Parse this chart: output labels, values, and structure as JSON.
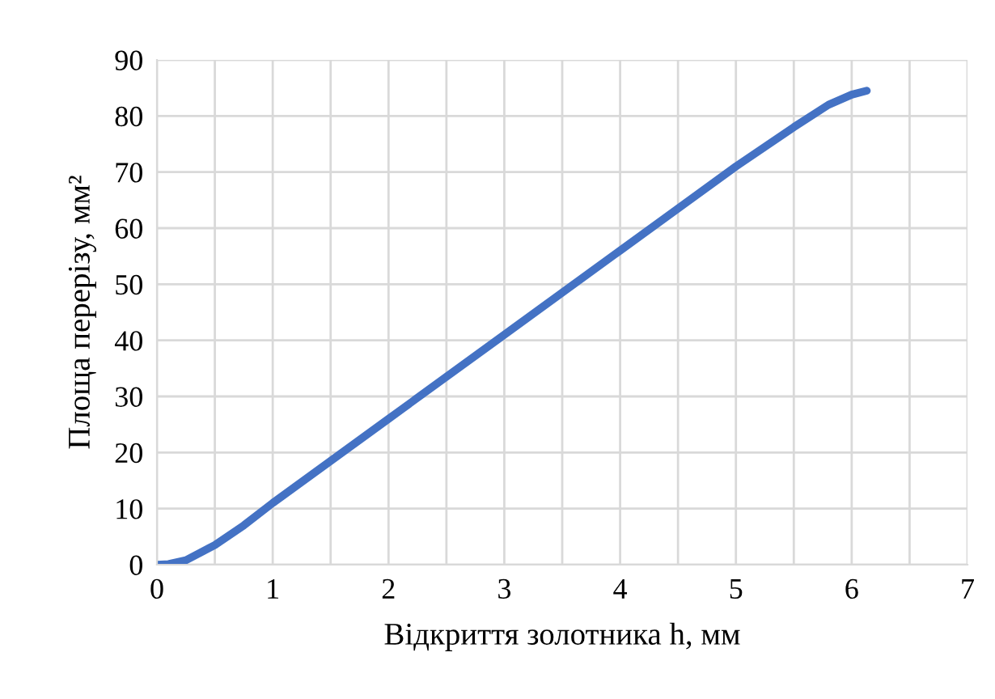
{
  "chart_data": {
    "type": "line",
    "xlabel": "Відкриття золотника h, мм",
    "ylabel": "Площа перерізу, мм²",
    "xlim": [
      0,
      7
    ],
    "ylim": [
      0,
      90
    ],
    "xticks": [
      0,
      {
        "value": 0.5,
        "label": null
      },
      1,
      {
        "value": 1.5,
        "label": null
      },
      2,
      {
        "value": 2.5,
        "label": null
      },
      3,
      {
        "value": 3.5,
        "label": null
      },
      4,
      {
        "value": 4.5,
        "label": null
      },
      5,
      {
        "value": 5.5,
        "label": null
      },
      6,
      {
        "value": 6.5,
        "label": null
      },
      7
    ],
    "yticks": [
      0,
      10,
      20,
      30,
      40,
      50,
      60,
      70,
      80,
      90
    ],
    "grid": true,
    "marker": "none",
    "line_style": "solid",
    "series": [
      {
        "color": "#4472c4",
        "x": [
          0,
          0.1,
          0.25,
          0.5,
          0.75,
          1,
          1.5,
          2,
          3,
          4,
          5,
          5.5,
          5.8,
          6,
          6.13
        ],
        "values": [
          0,
          0.1,
          0.8,
          3.5,
          7,
          11,
          18.5,
          26,
          41,
          56,
          71,
          78,
          82,
          83.8,
          84.5
        ]
      }
    ]
  }
}
